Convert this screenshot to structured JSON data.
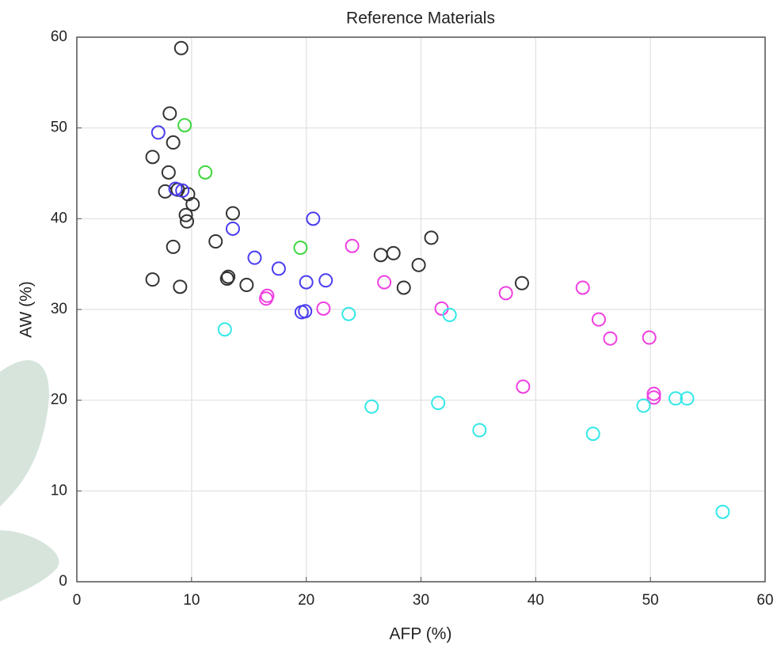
{
  "chart_data": {
    "type": "scatter",
    "title": "Reference Materials",
    "x_label": "AFP (%)",
    "y_label": "AW (%)",
    "xlim": [
      0,
      60
    ],
    "ylim": [
      0,
      60
    ],
    "xticks": [
      0,
      10,
      20,
      30,
      40,
      50,
      60
    ],
    "yticks": [
      0,
      10,
      20,
      30,
      40,
      50,
      60
    ],
    "grid": true,
    "series": [
      {
        "color": "#333333",
        "x": [
          9.1,
          8.1,
          8.4,
          6.6,
          8.0,
          7.7,
          8.8,
          9.7,
          10.1,
          9.5,
          9.6,
          13.6,
          12.1,
          8.4,
          6.6,
          9.0,
          13.1,
          14.8,
          26.5,
          27.6,
          30.9,
          29.8,
          28.5,
          38.8,
          13.2
        ],
        "values": [
          58.8,
          51.6,
          48.4,
          46.8,
          45.1,
          43.0,
          43.2,
          42.7,
          41.6,
          40.4,
          39.7,
          40.6,
          37.5,
          36.9,
          33.3,
          32.5,
          33.4,
          32.7,
          36.0,
          36.2,
          37.9,
          34.9,
          32.4,
          32.9,
          33.6
        ]
      },
      {
        "color": "#4a3cf0",
        "x": [
          7.1,
          8.6,
          9.2,
          13.6,
          15.5,
          17.6,
          20.6,
          20.0,
          21.7,
          19.6,
          19.9
        ],
        "values": [
          49.5,
          43.3,
          43.1,
          38.9,
          35.7,
          34.5,
          40.0,
          33.0,
          33.2,
          29.7,
          29.8
        ]
      },
      {
        "color": "#3fd63f",
        "x": [
          9.4,
          11.2,
          19.5
        ],
        "values": [
          50.3,
          45.1,
          36.8
        ]
      },
      {
        "color": "#ee3fe0",
        "x": [
          16.6,
          16.5,
          21.5,
          24.0,
          26.8,
          31.8,
          37.4,
          44.1,
          45.5,
          46.5,
          49.9,
          38.9,
          50.3,
          50.3
        ],
        "values": [
          31.5,
          31.2,
          30.1,
          37.0,
          33.0,
          30.1,
          31.8,
          32.4,
          28.9,
          26.8,
          26.9,
          21.5,
          20.7,
          20.3
        ]
      },
      {
        "color": "#33e8e8",
        "x": [
          12.9,
          23.7,
          32.5,
          25.7,
          31.5,
          35.1,
          45.0,
          49.4,
          52.2,
          53.2,
          56.3
        ],
        "values": [
          27.8,
          29.5,
          29.4,
          19.3,
          19.7,
          16.7,
          16.3,
          19.4,
          20.2,
          20.2,
          7.7
        ]
      }
    ]
  }
}
